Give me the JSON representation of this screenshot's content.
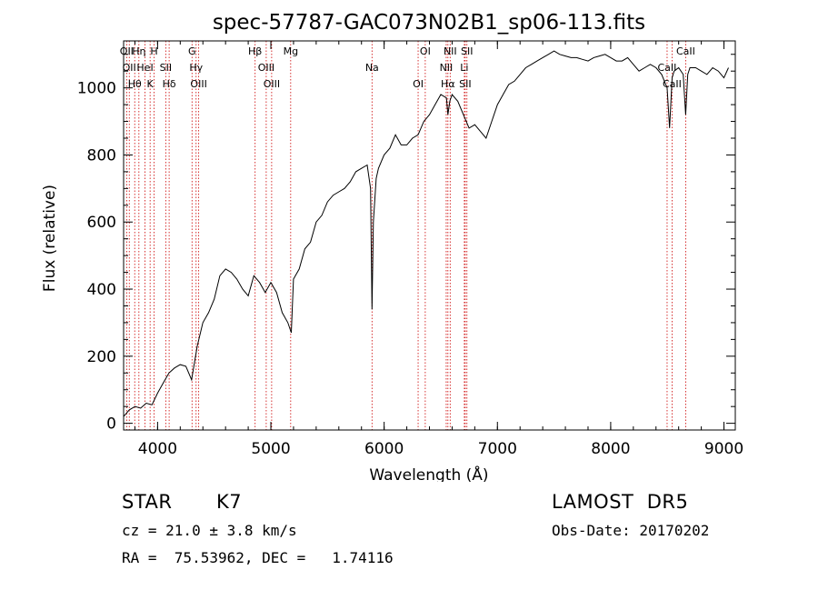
{
  "chart_data": {
    "type": "line",
    "title": "spec-57787-GAC073N02B1_sp06-113.fits",
    "xlabel": "Wavelength (Å)",
    "ylabel": "Flux (relative)",
    "xlim": [
      3700,
      9100
    ],
    "ylim": [
      -20,
      1140
    ],
    "xticks": [
      4000,
      5000,
      6000,
      7000,
      8000,
      9000
    ],
    "yticks": [
      0,
      200,
      400,
      600,
      800,
      1000
    ],
    "grid": false,
    "series": [
      {
        "x": [
          3700,
          3750,
          3800,
          3850,
          3900,
          3950,
          4000,
          4050,
          4100,
          4150,
          4200,
          4250,
          4300,
          4350,
          4400,
          4450,
          4500,
          4550,
          4600,
          4650,
          4700,
          4750,
          4800,
          4850,
          4900,
          4950,
          5000,
          5050,
          5100,
          5150,
          5180,
          5200,
          5250,
          5300,
          5350,
          5400,
          5450,
          5500,
          5550,
          5600,
          5650,
          5700,
          5750,
          5800,
          5850,
          5880,
          5893,
          5905,
          5930,
          5950,
          6000,
          6050,
          6100,
          6150,
          6200,
          6250,
          6300,
          6350,
          6400,
          6450,
          6500,
          6550,
          6563,
          6580,
          6600,
          6650,
          6700,
          6750,
          6800,
          6850,
          6900,
          6950,
          7000,
          7050,
          7100,
          7150,
          7200,
          7250,
          7300,
          7350,
          7400,
          7450,
          7500,
          7550,
          7600,
          7650,
          7700,
          7750,
          7800,
          7850,
          7900,
          7950,
          8000,
          8050,
          8100,
          8150,
          8200,
          8250,
          8300,
          8350,
          8400,
          8450,
          8498,
          8520,
          8542,
          8560,
          8600,
          8640,
          8662,
          8680,
          8700,
          8750,
          8800,
          8850,
          8900,
          8950,
          9000,
          9040
        ],
        "y": [
          20,
          40,
          50,
          45,
          60,
          55,
          90,
          120,
          150,
          165,
          175,
          170,
          130,
          230,
          300,
          330,
          370,
          440,
          460,
          450,
          430,
          400,
          380,
          440,
          420,
          390,
          420,
          390,
          330,
          300,
          270,
          430,
          460,
          520,
          540,
          600,
          620,
          660,
          680,
          690,
          700,
          720,
          750,
          760,
          770,
          700,
          340,
          600,
          730,
          760,
          800,
          820,
          860,
          830,
          830,
          850,
          860,
          900,
          920,
          950,
          980,
          970,
          920,
          960,
          980,
          960,
          920,
          880,
          890,
          870,
          850,
          900,
          950,
          980,
          1010,
          1020,
          1040,
          1060,
          1070,
          1080,
          1090,
          1100,
          1110,
          1100,
          1095,
          1090,
          1090,
          1085,
          1080,
          1090,
          1095,
          1100,
          1090,
          1080,
          1080,
          1090,
          1070,
          1050,
          1060,
          1070,
          1060,
          1040,
          1000,
          880,
          1030,
          1050,
          1060,
          1040,
          920,
          1040,
          1060,
          1060,
          1050,
          1040,
          1060,
          1050,
          1030,
          1060
        ]
      }
    ],
    "lines": [
      {
        "w": 3727,
        "labels": [
          "OII"
        ]
      },
      {
        "w": 3750,
        "labels": [
          "OII"
        ]
      },
      {
        "w": 3798,
        "labels": [
          "Hθ"
        ]
      },
      {
        "w": 3835,
        "labels": [
          "Hη"
        ]
      },
      {
        "w": 3889,
        "labels": [
          "HeI"
        ]
      },
      {
        "w": 3934,
        "labels": [
          "K"
        ]
      },
      {
        "w": 3969,
        "labels": [
          "H"
        ]
      },
      {
        "w": 4072,
        "labels": [
          "SII"
        ]
      },
      {
        "w": 4102,
        "labels": [
          "Hδ"
        ]
      },
      {
        "w": 4304,
        "labels": [
          "G"
        ]
      },
      {
        "w": 4340,
        "labels": [
          "Hγ"
        ]
      },
      {
        "w": 4363,
        "labels": [
          "OIII"
        ]
      },
      {
        "w": 4861,
        "labels": [
          "Hβ"
        ]
      },
      {
        "w": 4959,
        "labels": [
          "OIII"
        ]
      },
      {
        "w": 5007,
        "labels": [
          "OIII"
        ]
      },
      {
        "w": 5175,
        "labels": [
          "Mg"
        ]
      },
      {
        "w": 5893,
        "labels": [
          "Na"
        ]
      },
      {
        "w": 6300,
        "labels": [
          "OI"
        ]
      },
      {
        "w": 6363,
        "labels": [
          "OI"
        ]
      },
      {
        "w": 6548,
        "labels": [
          "NII"
        ]
      },
      {
        "w": 6563,
        "labels": [
          "Hα"
        ]
      },
      {
        "w": 6583,
        "labels": [
          "NII"
        ]
      },
      {
        "w": 6708,
        "labels": [
          "Li"
        ]
      },
      {
        "w": 6716,
        "labels": [
          "SII"
        ]
      },
      {
        "w": 6731,
        "labels": [
          "SII"
        ]
      },
      {
        "w": 8498,
        "labels": [
          "CaII"
        ]
      },
      {
        "w": 8542,
        "labels": [
          "CaII"
        ]
      },
      {
        "w": 8662,
        "labels": [
          "CaII"
        ]
      }
    ]
  },
  "info": {
    "object_class": "STAR",
    "subclass": "K7",
    "survey": "LAMOST  DR5",
    "redshift": "cz = 21.0 ± 3.8 km/s",
    "obs_date": "Obs-Date: 20170202",
    "coords": "RA =  75.53962, DEC =   1.74116"
  },
  "colors": {
    "spectrum": "#000000",
    "line_marker": "#cc0000",
    "text": "#000000"
  }
}
